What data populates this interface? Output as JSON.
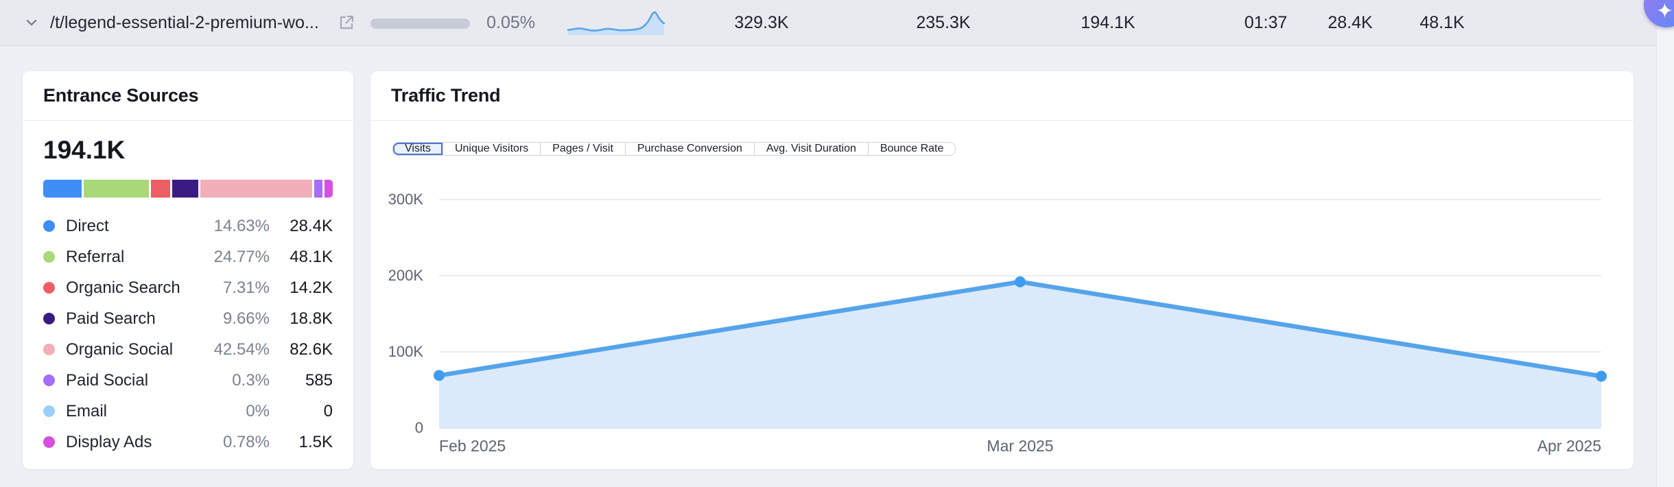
{
  "top_row": {
    "url": "/t/legend-essential-2-premium-wo...",
    "traffic_share": "0.05%",
    "metrics": [
      "329.3K",
      "235.3K",
      "194.1K",
      "01:37",
      "28.4K",
      "48.1K"
    ]
  },
  "icons": {
    "sparkle": "✦"
  },
  "entrance_sources": {
    "title": "Entrance Sources",
    "total": "194.1K",
    "rows": [
      {
        "label": "Direct",
        "percent": "14.63%",
        "value": "28.4K",
        "color": "#3E8EF7",
        "share": 14.63
      },
      {
        "label": "Referral",
        "percent": "24.77%",
        "value": "48.1K",
        "color": "#A8D878",
        "share": 24.77
      },
      {
        "label": "Organic Search",
        "percent": "7.31%",
        "value": "14.2K",
        "color": "#ED5E64",
        "share": 7.31
      },
      {
        "label": "Paid Search",
        "percent": "9.66%",
        "value": "18.8K",
        "color": "#3B1B83",
        "share": 9.66
      },
      {
        "label": "Organic Social",
        "percent": "42.54%",
        "value": "82.6K",
        "color": "#F2AEB9",
        "share": 42.54
      },
      {
        "label": "Paid Social",
        "percent": "0.3%",
        "value": "585",
        "color": "#A46EF8",
        "share": 0.3
      },
      {
        "label": "Email",
        "percent": "0%",
        "value": "0",
        "color": "#9CCFF8",
        "share": 0
      },
      {
        "label": "Display Ads",
        "percent": "0.78%",
        "value": "1.5K",
        "color": "#D450DD",
        "share": 0.78
      }
    ]
  },
  "traffic_trend": {
    "title": "Traffic Trend",
    "tabs": [
      {
        "label": "Visits",
        "active": true
      },
      {
        "label": "Unique Visitors",
        "active": false
      },
      {
        "label": "Pages / Visit",
        "active": false
      },
      {
        "label": "Purchase Conversion",
        "active": false
      },
      {
        "label": "Avg. Visit Duration",
        "active": false
      },
      {
        "label": "Bounce Rate",
        "active": false
      }
    ]
  },
  "chart_data": {
    "type": "area",
    "title": "Traffic Trend — Visits",
    "x_labels": [
      "Feb 2025",
      "Mar 2025",
      "Apr 2025"
    ],
    "series": [
      {
        "name": "Visits",
        "values": [
          69000,
          192000,
          68000
        ]
      }
    ],
    "ylim": [
      0,
      300000
    ],
    "y_ticks": [
      {
        "label": "300K",
        "value": 300000
      },
      {
        "label": "200K",
        "value": 200000
      },
      {
        "label": "100K",
        "value": 100000
      },
      {
        "label": "0",
        "value": 0
      }
    ],
    "grid": true,
    "line_color": "#55A4EB",
    "fill_color": "#DBEAFB",
    "point_color": "#3E9CF0"
  },
  "colors": {
    "page_bg": "#EFF0F5",
    "row_bg": "#E9EAF0",
    "accent_blue": "#5173CF",
    "ai_gradient": [
      "#8F7BF2",
      "#5F8CF4"
    ]
  }
}
